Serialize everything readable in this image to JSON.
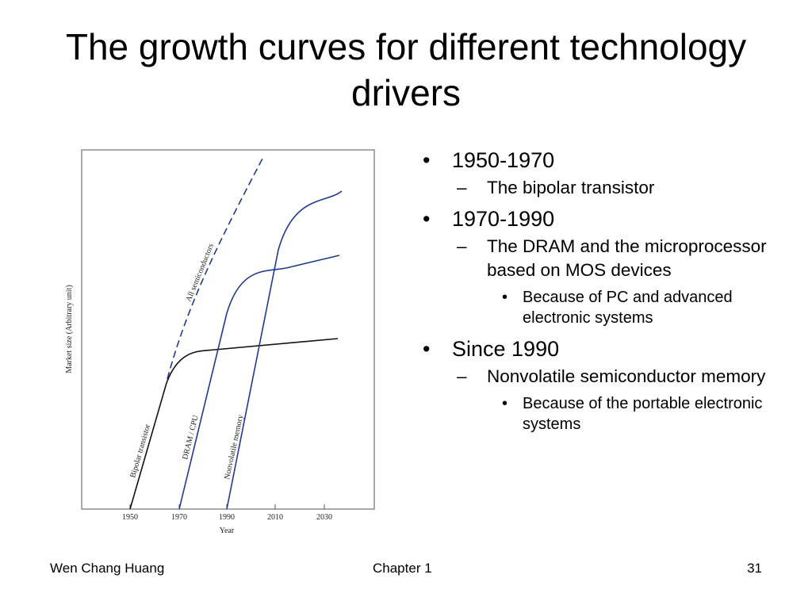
{
  "slide": {
    "title": "The growth curves for different technology drivers"
  },
  "figure": {
    "ylabel": "Market size (Arbitrary unit)",
    "xlabel": "Year",
    "xticks": [
      "1950",
      "1970",
      "1990",
      "2010",
      "2030"
    ],
    "curve_labels": {
      "all": "All semiconductors",
      "bipolar": "Bipolar transistor",
      "dram": "DRAM / CPU",
      "nonvolatile": "Nonvolatile memory"
    }
  },
  "bullets": [
    {
      "text": "1950-1970",
      "subs": [
        {
          "text": "The bipolar transistor",
          "subs": []
        }
      ]
    },
    {
      "text": "1970-1990",
      "subs": [
        {
          "text": "The DRAM and the microprocessor based on MOS devices",
          "subs": [
            "Because of PC and advanced electronic systems"
          ]
        }
      ]
    },
    {
      "text": "Since 1990",
      "subs": [
        {
          "text": "Nonvolatile semiconductor memory",
          "subs": [
            "Because of the portable electronic systems"
          ]
        }
      ]
    }
  ],
  "footer": {
    "author": "Wen Chang Huang",
    "chapter": "Chapter 1",
    "page": "31"
  }
}
